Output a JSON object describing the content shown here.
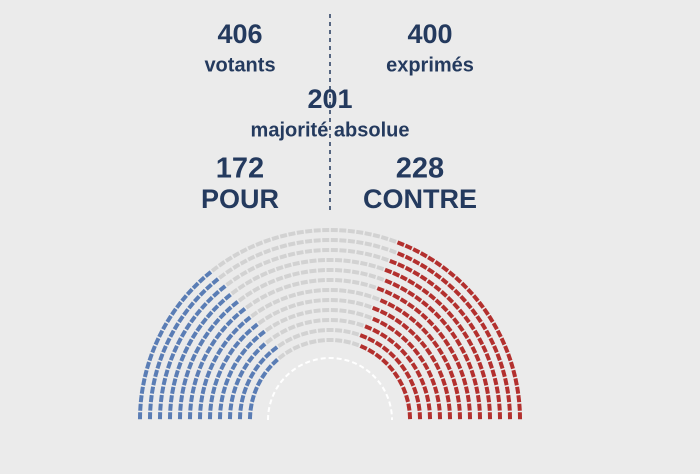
{
  "chart_data": {
    "type": "hemicycle",
    "stats": [
      {
        "value": 406,
        "label": "votants"
      },
      {
        "value": 400,
        "label": "exprimés"
      }
    ],
    "majority": {
      "value": 201,
      "label": "majorité absolue"
    },
    "series": [
      {
        "name": "POUR",
        "value": 172,
        "color": "#5a7db5"
      },
      {
        "name": "CONTRE",
        "value": 228,
        "color": "#b3302e"
      }
    ],
    "other_color": "#d2d2d2"
  }
}
